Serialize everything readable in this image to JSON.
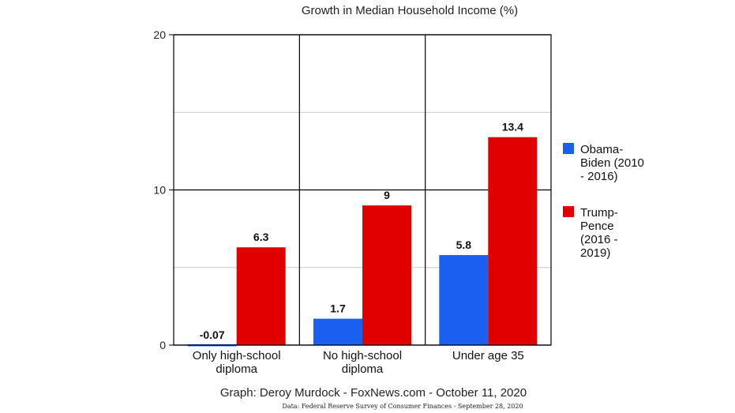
{
  "chart_data": {
    "type": "bar",
    "title": "Growth in Median Household Income (%)",
    "categories": [
      [
        "Only high-school",
        "diploma"
      ],
      [
        "No high-school",
        "diploma"
      ],
      [
        "Under age 35"
      ]
    ],
    "series": [
      {
        "name_lines": [
          "Obama-",
          "Biden (2010",
          "- 2016)"
        ],
        "values": [
          -0.07,
          1.7,
          5.8
        ],
        "labels": [
          "-0.07",
          "1.7",
          "5.8"
        ],
        "color": "#1a5ff0"
      },
      {
        "name_lines": [
          "Trump-",
          "Pence",
          "(2016 -",
          "2019)"
        ],
        "values": [
          6.3,
          9,
          13.4
        ],
        "labels": [
          "6.3",
          "9",
          "13.4"
        ],
        "color": "#e00000"
      }
    ],
    "ylim": [
      0,
      20
    ],
    "y_ticks": [
      0,
      10,
      20
    ],
    "grid": true,
    "legend": "right"
  },
  "credit": "Graph: Deroy Murdock - FoxNews.com - October 11, 2020",
  "source": "Data: Federal Reserve Survey of Consumer Finances - September 28, 2020"
}
